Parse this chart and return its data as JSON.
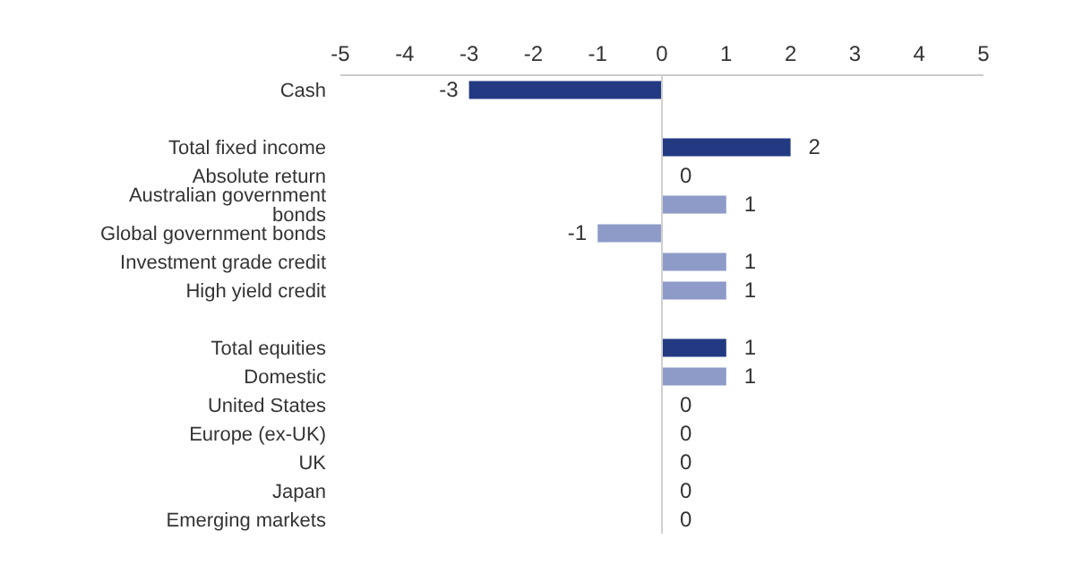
{
  "chart_data": {
    "type": "bar",
    "orientation": "horizontal",
    "categories": [
      "Cash",
      null,
      "Total fixed income",
      "Absolute return",
      "Australian government bonds",
      "Global government bonds",
      "Investment grade credit",
      "High yield credit",
      null,
      "Total equities",
      "Domestic",
      "United States",
      "Europe (ex-UK)",
      "UK",
      "Japan",
      "Emerging markets"
    ],
    "values": [
      -3,
      null,
      2,
      0,
      1,
      -1,
      1,
      1,
      null,
      1,
      1,
      0,
      0,
      0,
      0,
      0
    ],
    "colors": [
      "#233a83",
      "#8e9bc9",
      "#233a83",
      "#8e9bc9",
      "#8e9bc9",
      "#8e9bc9",
      "#8e9bc9",
      "#8e9bc9",
      "#8e9bc9",
      "#233a83",
      "#8e9bc9",
      "#8e9bc9",
      "#8e9bc9",
      "#8e9bc9",
      "#8e9bc9",
      "#8e9bc9"
    ],
    "xlim": [
      -5,
      5
    ],
    "xticks": [
      -5,
      -4,
      -3,
      -2,
      -1,
      0,
      1,
      2,
      3,
      4,
      5
    ],
    "ref_lines": [
      {
        "axis": "x",
        "value": 0,
        "color": "#d0d0d0"
      }
    ],
    "data_labels": true,
    "grid": false
  }
}
